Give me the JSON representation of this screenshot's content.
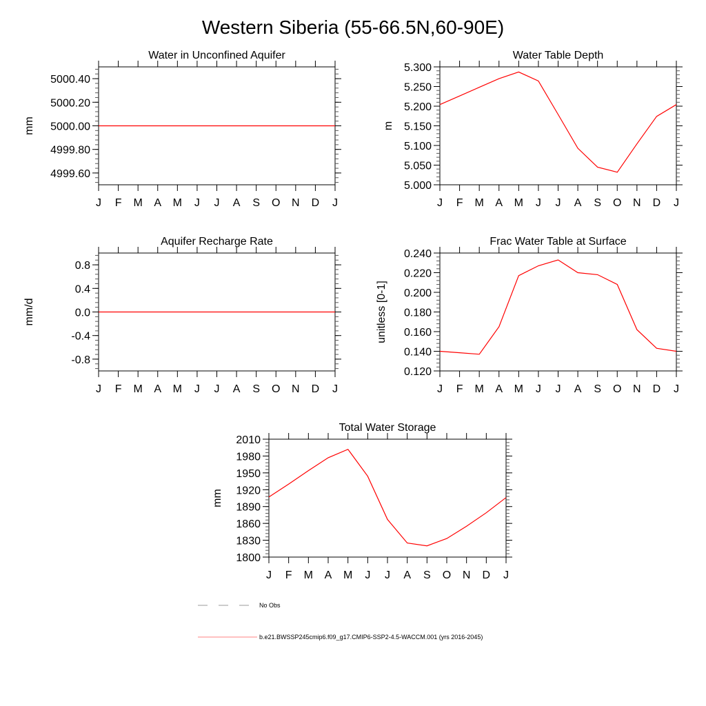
{
  "title": "Western Siberia (55-66.5N,60-90E)",
  "colors": {
    "series": "#ff0000",
    "obs": "#999999",
    "axis": "#000000"
  },
  "chart_data": [
    {
      "type": "line",
      "title": "Water in Unconfined Aquifer",
      "ylabel": "mm",
      "categories": [
        "J",
        "F",
        "M",
        "A",
        "M",
        "J",
        "J",
        "A",
        "S",
        "O",
        "N",
        "D",
        "J"
      ],
      "ylim": [
        4999.5,
        5000.5
      ],
      "yticks": [
        4999.6,
        4999.8,
        5000.0,
        5000.2,
        5000.4
      ],
      "ytick_labels": [
        "4999.60",
        "4999.80",
        "5000.00",
        "5000.20",
        "5000.40"
      ],
      "values": [
        5000,
        5000,
        5000,
        5000,
        5000,
        5000,
        5000,
        5000,
        5000,
        5000,
        5000,
        5000,
        5000
      ]
    },
    {
      "type": "line",
      "title": "Water Table Depth",
      "ylabel": "m",
      "categories": [
        "J",
        "F",
        "M",
        "A",
        "M",
        "J",
        "J",
        "A",
        "S",
        "O",
        "N",
        "D",
        "J"
      ],
      "ylim": [
        5.0,
        5.3
      ],
      "yticks": [
        5.0,
        5.05,
        5.1,
        5.15,
        5.2,
        5.25,
        5.3
      ],
      "ytick_labels": [
        "5.000",
        "5.050",
        "5.100",
        "5.150",
        "5.200",
        "5.250",
        "5.300"
      ],
      "values": [
        5.204,
        5.226,
        5.248,
        5.27,
        5.287,
        5.264,
        5.179,
        5.093,
        5.045,
        5.032,
        5.104,
        5.174,
        5.204
      ]
    },
    {
      "type": "line",
      "title": "Aquifer Recharge Rate",
      "ylabel": "mm/d",
      "categories": [
        "J",
        "F",
        "M",
        "A",
        "M",
        "J",
        "J",
        "A",
        "S",
        "O",
        "N",
        "D",
        "J"
      ],
      "ylim": [
        -1.0,
        1.0
      ],
      "yticks": [
        -0.8,
        -0.4,
        0.0,
        0.4,
        0.8
      ],
      "ytick_labels": [
        "-0.8",
        "-0.4",
        "0.0",
        "0.4",
        "0.8"
      ],
      "values": [
        0,
        0,
        0,
        0,
        0,
        0,
        0,
        0,
        0,
        0,
        0,
        0,
        0
      ]
    },
    {
      "type": "line",
      "title": "Frac Water Table at Surface",
      "ylabel": "unitless [0-1]",
      "categories": [
        "J",
        "F",
        "M",
        "A",
        "M",
        "J",
        "J",
        "A",
        "S",
        "O",
        "N",
        "D",
        "J"
      ],
      "ylim": [
        0.12,
        0.24
      ],
      "yticks": [
        0.12,
        0.14,
        0.16,
        0.18,
        0.2,
        0.22,
        0.24
      ],
      "ytick_labels": [
        "0.120",
        "0.140",
        "0.160",
        "0.180",
        "0.200",
        "0.220",
        "0.240"
      ],
      "values": [
        0.14,
        0.1385,
        0.137,
        0.165,
        0.217,
        0.227,
        0.233,
        0.22,
        0.218,
        0.208,
        0.162,
        0.143,
        0.14
      ]
    },
    {
      "type": "line",
      "title": "Total Water Storage",
      "ylabel": "mm",
      "categories": [
        "J",
        "F",
        "M",
        "A",
        "M",
        "J",
        "J",
        "A",
        "S",
        "O",
        "N",
        "D",
        "J"
      ],
      "ylim": [
        1800,
        2010
      ],
      "yticks": [
        1800,
        1830,
        1860,
        1890,
        1920,
        1950,
        1980,
        2010
      ],
      "ytick_labels": [
        "1800",
        "1830",
        "1860",
        "1890",
        "1920",
        "1950",
        "1980",
        "2010"
      ],
      "values": [
        1907,
        1930,
        1954,
        1977,
        1992,
        1944,
        1867,
        1825,
        1820,
        1833,
        1855,
        1879,
        1906
      ]
    }
  ],
  "legend": [
    {
      "label": "No Obs",
      "style": "dashed"
    },
    {
      "label": "b.e21.BWSSP245cmip6.f09_g17.CMIP6-SSP2-4.5-WACCM.001 (yrs 2016-2045)",
      "style": "solid"
    }
  ]
}
